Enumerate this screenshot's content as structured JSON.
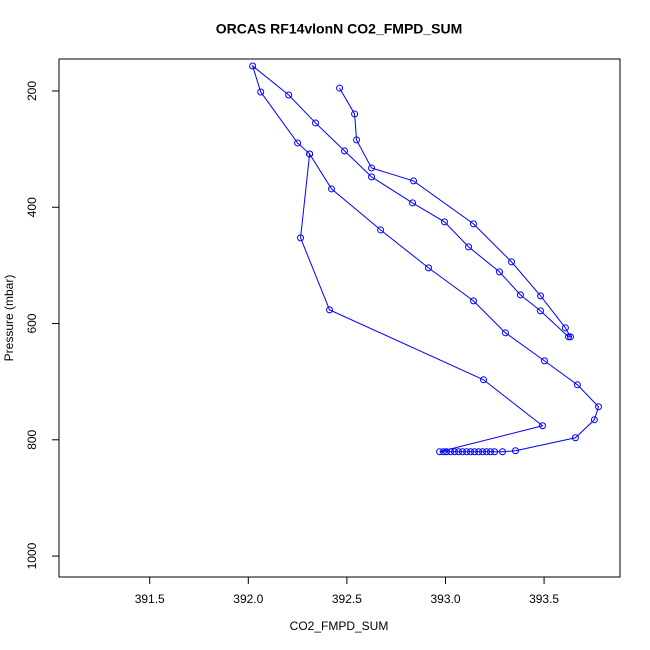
{
  "chart_data": {
    "type": "line",
    "title": "ORCAS RF14vlonN CO2_FMPD_SUM",
    "x_label": "CO2_FMPD_SUM",
    "y_label": "Pressure (mbar)",
    "color": "#0000ff",
    "y_reversed": true,
    "xlim": [
      391.04,
      393.885
    ],
    "ylim": [
      1036,
      145
    ],
    "xticks": [
      391.5,
      {
        "value": 392,
        "label": "392.0"
      },
      392.5,
      {
        "value": 393,
        "label": "393.0"
      },
      393.5
    ],
    "yticks": [
      200,
      400,
      600,
      800,
      1000
    ],
    "x": [
      392.463,
      392.539,
      392.549,
      392.625,
      392.838,
      393.142,
      393.335,
      393.482,
      393.608,
      393.634,
      393.624,
      393.482,
      393.38,
      393.274,
      393.117,
      392.995,
      392.833,
      392.625,
      392.488,
      392.341,
      392.205,
      392.022,
      392.063,
      392.25,
      392.311,
      392.422,
      392.671,
      392.914,
      393.142,
      393.304,
      393.502,
      393.669,
      393.776,
      393.755,
      393.659,
      393.355,
      393.289,
      393.249,
      393.228,
      393.208,
      393.188,
      393.168,
      393.147,
      393.127,
      393.107,
      393.086,
      393.066,
      393.046,
      393.026,
      393.005,
      392.99,
      392.97,
      393.492,
      393.193,
      392.412,
      392.265,
      392.311
    ],
    "values": [
      195,
      239.5,
      284.2,
      332.4,
      354.7,
      428.6,
      494,
      552.4,
      607.4,
      622.9,
      622.9,
      578.2,
      550.7,
      511.2,
      468.2,
      425.2,
      392.5,
      347.8,
      303.1,
      255,
      206.9,
      157,
      201.7,
      289.4,
      308.3,
      368.5,
      439,
      504.3,
      561,
      616,
      664.2,
      705.4,
      743.2,
      765.6,
      796.5,
      818.9,
      820.6,
      820.6,
      820.6,
      820.6,
      820.6,
      820.6,
      820.6,
      820.6,
      820.6,
      820.6,
      820.6,
      820.6,
      820.6,
      820.6,
      820.6,
      820.6,
      775.9,
      696.8,
      576.5,
      452.7,
      308.3
    ]
  }
}
